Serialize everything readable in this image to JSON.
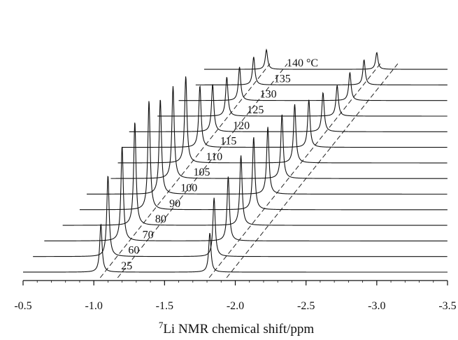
{
  "chart_data": {
    "type": "line",
    "subtype": "stacked-nmr-spectra",
    "title": "",
    "xlabel_superscript": "7",
    "xlabel": "Li NMR chemical shift/ppm",
    "ylabel": "",
    "x_reversed": true,
    "xlim": [
      -0.5,
      -3.5
    ],
    "x_ticks": [
      -0.5,
      -1.0,
      -1.5,
      -2.0,
      -2.5,
      -3.0,
      -3.5
    ],
    "x_tick_labels": [
      "-0.5",
      "-1.0",
      "-1.5",
      "-2.0",
      "-2.5",
      "-3.0",
      "-3.5"
    ],
    "grid": false,
    "legend": "none",
    "temperature_unit": "°C",
    "series": [
      {
        "temperature": "25",
        "label": "25",
        "peak1_ppm": -1.05,
        "peak2_ppm": -1.82,
        "peak1_height": 0.86,
        "peak2_height": 0.7,
        "start_ppm": -0.5
      },
      {
        "temperature": "60",
        "label": "60",
        "peak1_ppm": -1.1,
        "peak2_ppm": -1.85,
        "peak1_height": 1.45,
        "peak2_height": 1.05,
        "start_ppm": -0.57
      },
      {
        "temperature": "70",
        "label": "70",
        "peak1_ppm": -1.2,
        "peak2_ppm": -1.95,
        "peak1_height": 1.7,
        "peak2_height": 1.15,
        "start_ppm": -0.65
      },
      {
        "temperature": "80",
        "label": "80",
        "peak1_ppm": -1.29,
        "peak2_ppm": -2.04,
        "peak1_height": 1.85,
        "peak2_height": 1.25,
        "start_ppm": -0.78
      },
      {
        "temperature": "90",
        "label": "90",
        "peak1_ppm": -1.39,
        "peak2_ppm": -2.13,
        "peak1_height": 1.95,
        "peak2_height": 1.3,
        "start_ppm": -0.9
      },
      {
        "temperature": "100",
        "label": "100",
        "peak1_ppm": -1.47,
        "peak2_ppm": -2.23,
        "peak1_height": 1.7,
        "peak2_height": 1.2,
        "start_ppm": -0.95
      },
      {
        "temperature": "105",
        "label": "105",
        "peak1_ppm": -1.56,
        "peak2_ppm": -2.33,
        "peak1_height": 1.65,
        "peak2_height": 1.15,
        "start_ppm": -1.12
      },
      {
        "temperature": "110",
        "label": "110",
        "peak1_ppm": -1.65,
        "peak2_ppm": -2.42,
        "peak1_height": 1.55,
        "peak2_height": 1.05,
        "start_ppm": -1.17
      },
      {
        "temperature": "115",
        "label": "115",
        "peak1_ppm": -1.75,
        "peak2_ppm": -2.52,
        "peak1_height": 1.1,
        "peak2_height": 0.85,
        "start_ppm": -1.2
      },
      {
        "temperature": "120",
        "label": "120",
        "peak1_ppm": -1.84,
        "peak2_ppm": -2.62,
        "peak1_height": 0.85,
        "peak2_height": 0.7,
        "start_ppm": -1.25
      },
      {
        "temperature": "125",
        "label": "125",
        "peak1_ppm": -1.94,
        "peak2_ppm": -2.72,
        "peak1_height": 0.7,
        "peak2_height": 0.55,
        "start_ppm": -1.45
      },
      {
        "temperature": "130",
        "label": "130",
        "peak1_ppm": -2.03,
        "peak2_ppm": -2.81,
        "peak1_height": 0.6,
        "peak2_height": 0.5,
        "start_ppm": -1.6
      },
      {
        "temperature": "135",
        "label": "135",
        "peak1_ppm": -2.13,
        "peak2_ppm": -2.91,
        "peak1_height": 0.5,
        "peak2_height": 0.45,
        "start_ppm": -1.72
      },
      {
        "temperature": "140",
        "label": "140 °C",
        "peak1_ppm": -2.22,
        "peak2_ppm": -3.0,
        "peak1_height": 0.35,
        "peak2_height": 0.3,
        "start_ppm": -1.78
      }
    ],
    "guides": [
      {
        "name": "peak1-trend",
        "from_ppm": -1.05,
        "to_ppm": -2.22
      },
      {
        "name": "peak2-trend",
        "from_ppm": -1.82,
        "to_ppm": -3.0
      }
    ]
  }
}
